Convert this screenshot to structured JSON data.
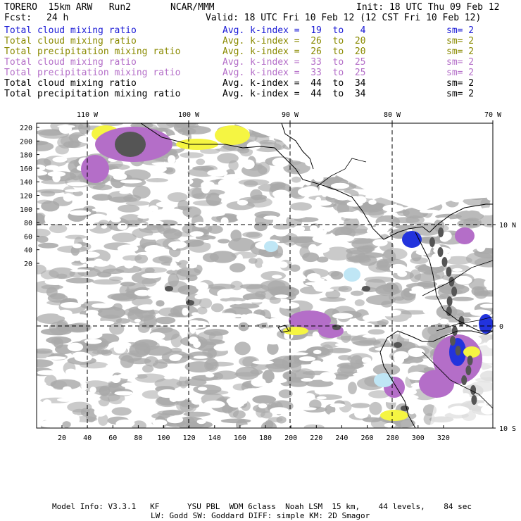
{
  "header": {
    "model": "TORERO  15km ARW   Run2",
    "org": "NCAR/MMM",
    "init": "Init: 18 UTC Thu 09 Feb 12",
    "fcst_label": "Fcst:",
    "fcst_value": "24 h",
    "valid": "Valid: 18 UTC Fri 10 Feb 12 (12 CST Fri 10 Feb 12)"
  },
  "legend": [
    {
      "field": "Total cloud mixing ratio",
      "kindex": "Avg. k-index =  19  to   4",
      "sm": "sm= 2",
      "color": "#1b1bd6"
    },
    {
      "field": "Total cloud mixing ratio",
      "kindex": "Avg. k-index =  26  to  20",
      "sm": "sm= 2",
      "color": "#8a8a00"
    },
    {
      "field": "Total precipitation mixing ratio",
      "kindex": "Avg. k-index =  26  to  20",
      "sm": "sm= 2",
      "color": "#8a8a00"
    },
    {
      "field": "Total cloud mixing ratio",
      "kindex": "Avg. k-index =  33  to  25",
      "sm": "sm= 2",
      "color": "#b46ec8"
    },
    {
      "field": "Total precipitation mixing ratio",
      "kindex": "Avg. k-index =  33  to  25",
      "sm": "sm= 2",
      "color": "#b46ec8"
    },
    {
      "field": "Total cloud mixing ratio",
      "kindex": "Avg. k-index =  44  to  34",
      "sm": "sm= 2",
      "color": "#000000"
    },
    {
      "field": "Total precipitation mixing ratio",
      "kindex": "Avg. k-index =  44  to  34",
      "sm": "sm= 2",
      "color": "#000000"
    }
  ],
  "map": {
    "lon_labels": [
      "110 W",
      "100 W",
      "90 W",
      "80 W",
      "70 W"
    ],
    "lat_labels": [
      "10 N",
      "0",
      "10 S"
    ],
    "y_ticks": [
      "220",
      "200",
      "180",
      "160",
      "140",
      "120",
      "100",
      "80",
      "60",
      "40",
      "20"
    ],
    "x_ticks": [
      "20",
      "40",
      "60",
      "80",
      "100",
      "120",
      "140",
      "160",
      "180",
      "200",
      "220",
      "240",
      "260",
      "280",
      "300",
      "320"
    ],
    "colors": {
      "cloud_gray": "#a9a9a9",
      "dark_gray": "#555555",
      "purple": "#b46ec8",
      "yellow": "#f5f542",
      "blue": "#2233dd",
      "light_blue": "#bfe6f5"
    }
  },
  "footer": {
    "line1": "Model Info: V3.3.1   KF      YSU PBL  WDM 6class  Noah LSM  15 km,    44 levels,    84 sec",
    "line2": "LW: Godd SW: Goddard DIFF: simple KM: 2D Smagor"
  }
}
